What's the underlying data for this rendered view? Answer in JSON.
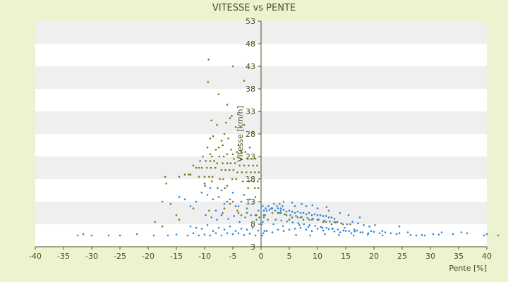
{
  "chart_data": {
    "type": "scatter",
    "title": "VITESSE vs PENTE",
    "xlabel": "Pente [%]",
    "ylabel": "Vitesse [km/h]",
    "xlim": [
      -40,
      40
    ],
    "ylim": [
      3,
      53
    ],
    "x_ticks": [
      -40,
      -35,
      -30,
      -25,
      -20,
      -15,
      -10,
      -5,
      0,
      5,
      10,
      15,
      20,
      25,
      30,
      35,
      40
    ],
    "y_ticks": [
      3,
      8,
      13,
      18,
      23,
      28,
      33,
      38,
      43,
      48,
      53
    ],
    "grid": "horizontal bands",
    "legend": "none",
    "colors": {
      "background": "#eef3cf",
      "band": "#efefef",
      "plot": "#ffffff",
      "axis": "#4d4d1f"
    },
    "series": [
      {
        "color": "#7a7a14",
        "marker": "dot",
        "x": [
          -9.3,
          -5.0,
          -9.4,
          -3.0,
          -7.5,
          -6.0,
          -5.2,
          -5.5,
          -8.8,
          -6.2,
          -7.8,
          -4.5,
          -3.0,
          -1.5,
          -6.5,
          -9.0,
          -8.5,
          -5.8,
          -7.0,
          -6.8,
          -4.0,
          -2.0,
          -9.5,
          -7.5,
          -8.0,
          -5.3,
          -4.3,
          -3.5,
          -2.8,
          -6.0,
          -5.0,
          -9.0,
          -10.3,
          -8.7,
          -7.4,
          -6.6,
          -4.8,
          -3.6,
          -2.4,
          -1.7,
          -1.0,
          -10.8,
          -9.8,
          -9.0,
          -8.3,
          -7.8,
          -6.8,
          -6.0,
          -5.4,
          -4.6,
          -3.8,
          -3.0,
          -2.2,
          -1.4,
          -0.7,
          -12.0,
          -11.5,
          -11.0,
          -10.5,
          -9.6,
          -8.9,
          -8.1,
          -7.0,
          -6.3,
          -5.6,
          -4.9,
          -4.2,
          -3.4,
          -2.6,
          -1.8,
          -1.1,
          -0.4,
          -13.5,
          -12.8,
          -12.5,
          -11.0,
          -10.0,
          -9.2,
          -8.6,
          -7.3,
          -6.7,
          -5.1,
          -4.4,
          -3.2,
          -2.0,
          -1.3,
          -0.6,
          -16.8,
          -17.0,
          -14.5,
          -10.0,
          -8.7,
          -9.9,
          -7.7,
          -6.4,
          -2.3,
          -1.1,
          -0.5,
          -17.5,
          -16.0,
          -6.0,
          -5.5,
          -5.0,
          -7.0,
          -4.0,
          -3.5,
          -18.8,
          -17.5,
          -15.0,
          -14.5,
          -12.0,
          -9.2,
          -6.5,
          -4.2,
          -2.5,
          -1.0,
          -0.3,
          -0.8,
          0.5,
          2.0,
          3.0,
          4.5,
          5.5,
          6.5,
          7.5,
          8.5,
          10.0,
          11.5,
          12.5,
          13.5,
          14.5,
          15.8,
          1.2,
          3.5,
          5.0,
          7.0,
          9.0,
          11.0,
          13.0
        ],
        "y": [
          44.5,
          43.0,
          39.5,
          39.8,
          36.8,
          34.5,
          32.0,
          31.5,
          31.0,
          30.5,
          30.0,
          29.5,
          30.0,
          28.5,
          28.0,
          27.0,
          27.5,
          27.0,
          26.5,
          25.5,
          25.5,
          25.0,
          25.0,
          25.0,
          24.5,
          24.5,
          24.0,
          24.0,
          24.0,
          23.5,
          23.5,
          23.5,
          23.0,
          23.0,
          23.0,
          23.0,
          22.5,
          22.5,
          22.5,
          22.5,
          22.5,
          22.0,
          22.0,
          22.0,
          22.0,
          21.5,
          21.5,
          21.5,
          21.5,
          21.5,
          21.0,
          21.0,
          21.0,
          21.0,
          21.0,
          21.0,
          20.5,
          20.5,
          20.5,
          20.5,
          20.5,
          20.5,
          20.0,
          20.0,
          20.0,
          20.0,
          19.5,
          19.5,
          19.5,
          19.5,
          19.5,
          19.5,
          19.0,
          19.0,
          19.0,
          18.5,
          18.5,
          18.5,
          18.5,
          18.0,
          18.0,
          18.0,
          18.0,
          17.5,
          17.5,
          17.5,
          17.5,
          17.0,
          18.5,
          18.5,
          17.0,
          17.5,
          16.5,
          16.0,
          16.0,
          16.0,
          16.0,
          16.0,
          13.0,
          12.5,
          13.0,
          12.5,
          13.0,
          10.0,
          10.5,
          10.0,
          8.5,
          7.5,
          10.0,
          9.0,
          11.5,
          11.0,
          11.5,
          11.0,
          10.5,
          10.0,
          9.5,
          10.0,
          10.0,
          10.5,
          10.5,
          10.0,
          9.5,
          9.5,
          9.0,
          9.0,
          9.0,
          8.5,
          8.0,
          8.5,
          8.0,
          8.0,
          9.0,
          10.5,
          9.0,
          9.5,
          9.0,
          8.5,
          8.5
        ]
      },
      {
        "color": "#2e86d6",
        "marker": "dot",
        "x": [
          -32.5,
          -31.5,
          -30.0,
          -27.0,
          -25.0,
          -22.0,
          -19.0,
          -16.5,
          -15.0,
          -13.0,
          -12.0,
          -11.0,
          -10.0,
          -9.0,
          -8.0,
          -7.0,
          -6.0,
          -5.0,
          -4.0,
          -3.0,
          -2.0,
          -1.0,
          -12.5,
          -11.5,
          -10.5,
          -9.5,
          -8.5,
          -7.5,
          -6.5,
          -5.5,
          -4.5,
          -3.5,
          -2.5,
          -1.5,
          -0.5,
          -9.8,
          -8.8,
          -7.8,
          -6.8,
          -5.8,
          -4.8,
          -3.8,
          -2.8,
          -1.8,
          -0.8,
          -14.5,
          -13.5,
          -12.5,
          -11.5,
          -10.5,
          -9.5,
          -8.5,
          -7.5,
          -6.5,
          -5.5,
          -4.5,
          -3.5,
          -2.5,
          -1.5,
          -0.5,
          -9.0,
          -7.0,
          -5.0,
          -3.0,
          -1.0,
          -10.0,
          -6.0,
          -2.0,
          -8.0,
          -4.0,
          0.3,
          0.8,
          1.3,
          1.8,
          2.3,
          2.8,
          3.3,
          3.8,
          0.5,
          1.0,
          1.5,
          2.0,
          2.5,
          3.0,
          3.5,
          4.0,
          4.5,
          5.0,
          5.5,
          6.0,
          6.5,
          7.0,
          7.5,
          8.0,
          8.5,
          9.0,
          9.5,
          10.0,
          10.5,
          11.0,
          11.5,
          12.0,
          12.5,
          13.0,
          3.2,
          4.2,
          5.2,
          6.2,
          7.2,
          8.2,
          9.2,
          10.2,
          11.2,
          12.2,
          13.2,
          14.2,
          15.2,
          16.2,
          17.2,
          18.2,
          19.2,
          20.2,
          2.6,
          3.6,
          4.6,
          5.6,
          6.6,
          7.6,
          8.6,
          9.6,
          10.6,
          11.6,
          12.6,
          13.6,
          14.6,
          15.6,
          16.6,
          17.6,
          1.0,
          2.0,
          3.0,
          4.0,
          5.0,
          6.0,
          7.0,
          8.0,
          9.0,
          10.0,
          11.0,
          12.0,
          13.0,
          14.0,
          15.0,
          16.0,
          17.0,
          18.0,
          19.0,
          20.0,
          21.0,
          22.0,
          23.0,
          24.5,
          6.2,
          8.7,
          11.3,
          13.8,
          16.4,
          18.9,
          21.5,
          24.0,
          26.5,
          29.0,
          31.5,
          34.0,
          36.5,
          39.5,
          42.0,
          19.5,
          21.5,
          24.5,
          26.0,
          27.5,
          28.5,
          30.5,
          32.0,
          35.5,
          40.0,
          3.5,
          6.0,
          8.0,
          10.0,
          12.0,
          14.0,
          15.5,
          17.5,
          0.2,
          0.4,
          0.6,
          0.1,
          0.3,
          0.5,
          0.7,
          4.0,
          5.5,
          7.2,
          9.1,
          11.6,
          2.2,
          3.9,
          6.8,
          8.4,
          10.9,
          12.7,
          14.8,
          16.5
        ],
        "y": [
          5.5,
          5.8,
          5.5,
          5.5,
          5.5,
          5.8,
          5.5,
          5.5,
          5.7,
          5.5,
          6.0,
          5.5,
          5.7,
          5.5,
          6.0,
          5.5,
          6.0,
          5.8,
          6.0,
          5.6,
          5.9,
          5.5,
          7.5,
          7.2,
          7.0,
          7.8,
          6.5,
          7.2,
          6.8,
          7.5,
          6.5,
          7.0,
          6.8,
          7.2,
          6.6,
          10.0,
          9.5,
          9.0,
          10.5,
          9.2,
          9.8,
          8.5,
          9.5,
          10.0,
          9.0,
          14.0,
          13.5,
          12.0,
          13.0,
          15.0,
          14.5,
          13.5,
          14.0,
          12.5,
          13.5,
          12.0,
          13.0,
          11.5,
          12.5,
          11.0,
          16.0,
          15.5,
          15.0,
          14.5,
          14.0,
          17.0,
          16.5,
          13.5,
          11.0,
          12.0,
          12.0,
          11.5,
          12.0,
          11.5,
          12.5,
          12.0,
          12.5,
          12.0,
          11.0,
          11.0,
          11.2,
          11.5,
          11.0,
          11.5,
          11.0,
          11.2,
          10.8,
          11.0,
          10.8,
          10.5,
          10.8,
          10.5,
          10.5,
          10.2,
          10.5,
          10.0,
          10.2,
          10.0,
          10.0,
          9.8,
          9.8,
          9.5,
          9.5,
          9.2,
          10.5,
          10.2,
          10.0,
          9.8,
          9.6,
          9.4,
          9.2,
          9.0,
          8.8,
          8.6,
          8.4,
          8.2,
          8.0,
          8.5,
          8.2,
          7.8,
          7.5,
          7.8,
          9.0,
          8.8,
          8.6,
          8.4,
          8.2,
          8.0,
          7.8,
          7.6,
          7.4,
          7.2,
          7.0,
          6.8,
          6.6,
          6.5,
          6.4,
          6.2,
          6.5,
          6.2,
          6.8,
          6.5,
          6.8,
          7.0,
          7.2,
          6.8,
          6.5,
          7.0,
          6.6,
          6.9,
          6.4,
          6.2,
          6.5,
          6.0,
          6.6,
          6.2,
          6.0,
          6.3,
          6.0,
          6.2,
          6.0,
          6.0,
          5.6,
          5.5,
          5.8,
          5.6,
          5.5,
          5.7,
          5.5,
          5.8,
          5.6,
          5.5,
          5.7,
          5.8,
          6.0,
          5.5,
          5.5,
          6.5,
          6.5,
          7.5,
          6.2,
          5.5,
          5.6,
          5.8,
          6.2,
          6.2,
          5.8,
          11.5,
          12.0,
          12.0,
          11.5,
          11.0,
          10.5,
          10.0,
          9.5,
          5.5,
          6.0,
          6.5,
          8.0,
          8.5,
          9.5,
          10.0,
          13.0,
          12.8,
          12.5,
          12.2,
          11.8,
          8.0,
          7.6,
          7.8,
          7.4,
          7.2,
          7.0,
          7.2,
          6.8
        ]
      }
    ]
  }
}
